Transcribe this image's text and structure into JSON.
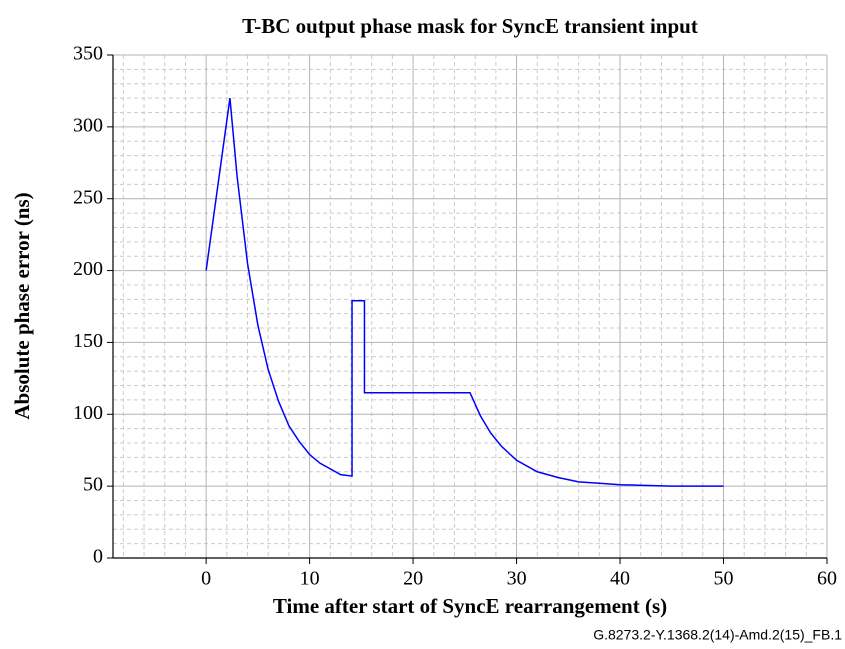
{
  "chart_data": {
    "type": "line",
    "title": "T-BC output phase mask for SyncE transient input",
    "x_label": "Time after start of SyncE rearrangement (s)",
    "y_label": "Absolute phase error (ns)",
    "footnote": "G.8273.2-Y.1368.2(14)-Amd.2(15)_FB.1",
    "x": [
      0,
      2.3,
      3,
      4,
      5,
      6,
      7,
      8,
      9,
      10,
      11,
      12,
      13,
      14.1,
      14.1,
      15.3,
      15.3,
      25.5,
      26.5,
      27.5,
      28.5,
      30,
      32,
      34,
      36,
      38,
      40,
      45,
      50
    ],
    "series": [
      {
        "name": "T-BC output phase mask",
        "color": "#0000ff",
        "values": [
          200,
          320,
          265,
          205,
          162,
          131,
          109,
          92,
          81,
          72,
          66,
          62,
          58,
          57,
          179,
          179,
          115,
          115,
          99,
          87,
          78,
          68,
          60,
          56,
          53,
          52,
          51,
          50,
          50
        ]
      }
    ],
    "xlim": [
      -9,
      60
    ],
    "xticks": [
      0,
      10,
      20,
      30,
      40,
      50,
      60
    ],
    "ylim": [
      0,
      350
    ],
    "yticks": [
      0,
      50,
      100,
      150,
      200,
      250,
      300,
      350
    ],
    "grid": true,
    "minor_grid": true
  }
}
